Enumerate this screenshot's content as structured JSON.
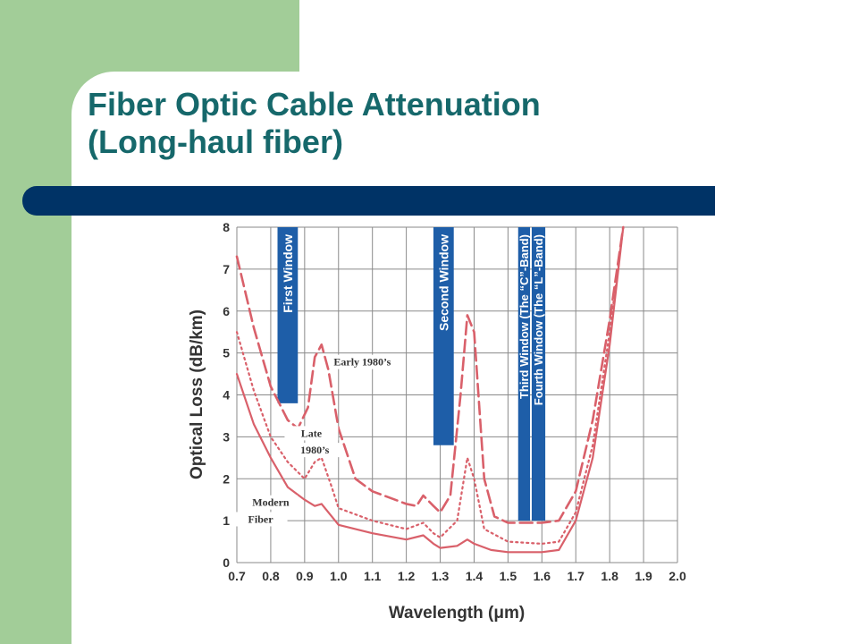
{
  "slide": {
    "title_line1": "Fiber Optic Cable Attenuation",
    "title_line2": "(Long-haul fiber)"
  },
  "colors": {
    "green_strip": "#a2cd98",
    "title_text": "#16686b",
    "navy_bar": "#003366",
    "window_band": "#1e5ea8",
    "curve": "#d9606a"
  },
  "chart_data": {
    "type": "line",
    "title": "",
    "xlabel": "Wavelength (μm)",
    "ylabel": "Optical Loss (dB/km)",
    "xlim": [
      0.7,
      2.0
    ],
    "ylim": [
      0,
      8
    ],
    "x_ticks": [
      "0.7",
      "0.8",
      "0.9",
      "1.0",
      "1.1",
      "1.2",
      "1.3",
      "1.4",
      "1.5",
      "1.6",
      "1.7",
      "1.8",
      "1.9",
      "2.0"
    ],
    "y_ticks": [
      "0",
      "1",
      "2",
      "3",
      "4",
      "5",
      "6",
      "7",
      "8"
    ],
    "grid": true,
    "bands": [
      {
        "label": "First Window",
        "x": [
          0.82,
          0.88
        ],
        "y": [
          3.8,
          8.0
        ]
      },
      {
        "label": "Second Window",
        "x": [
          1.28,
          1.34
        ],
        "y": [
          2.8,
          8.0
        ]
      },
      {
        "label": "Third Window (The “C”-Band)",
        "x": [
          1.53,
          1.565
        ],
        "y": [
          1.0,
          8.0
        ]
      },
      {
        "label": "Fourth Window (The “L”-Band)",
        "x": [
          1.57,
          1.61
        ],
        "y": [
          1.0,
          8.0
        ]
      }
    ],
    "series": [
      {
        "name": "Early 1980’s",
        "style": "dashed",
        "points": [
          [
            0.7,
            7.3
          ],
          [
            0.75,
            5.6
          ],
          [
            0.8,
            4.2
          ],
          [
            0.85,
            3.4
          ],
          [
            0.88,
            3.2
          ],
          [
            0.91,
            3.7
          ],
          [
            0.93,
            4.9
          ],
          [
            0.95,
            5.2
          ],
          [
            0.97,
            4.6
          ],
          [
            1.0,
            3.2
          ],
          [
            1.05,
            2.0
          ],
          [
            1.1,
            1.7
          ],
          [
            1.15,
            1.55
          ],
          [
            1.2,
            1.4
          ],
          [
            1.23,
            1.35
          ],
          [
            1.25,
            1.6
          ],
          [
            1.28,
            1.35
          ],
          [
            1.3,
            1.2
          ],
          [
            1.33,
            1.6
          ],
          [
            1.36,
            4.0
          ],
          [
            1.38,
            5.9
          ],
          [
            1.4,
            5.5
          ],
          [
            1.43,
            2.0
          ],
          [
            1.46,
            1.1
          ],
          [
            1.5,
            0.95
          ],
          [
            1.6,
            0.95
          ],
          [
            1.65,
            1.0
          ],
          [
            1.7,
            1.7
          ],
          [
            1.75,
            3.4
          ],
          [
            1.8,
            5.8
          ],
          [
            1.84,
            8.0
          ]
        ]
      },
      {
        "name": "Late 1980’s",
        "style": "dotted",
        "points": [
          [
            0.7,
            5.5
          ],
          [
            0.75,
            4.1
          ],
          [
            0.8,
            3.0
          ],
          [
            0.85,
            2.4
          ],
          [
            0.9,
            2.0
          ],
          [
            0.93,
            2.4
          ],
          [
            0.95,
            2.5
          ],
          [
            0.98,
            1.8
          ],
          [
            1.0,
            1.3
          ],
          [
            1.1,
            1.0
          ],
          [
            1.2,
            0.8
          ],
          [
            1.25,
            0.95
          ],
          [
            1.28,
            0.7
          ],
          [
            1.3,
            0.6
          ],
          [
            1.35,
            1.0
          ],
          [
            1.38,
            2.5
          ],
          [
            1.4,
            2.0
          ],
          [
            1.43,
            0.8
          ],
          [
            1.5,
            0.5
          ],
          [
            1.6,
            0.45
          ],
          [
            1.65,
            0.5
          ],
          [
            1.7,
            1.2
          ],
          [
            1.75,
            2.8
          ],
          [
            1.8,
            5.5
          ],
          [
            1.84,
            8.0
          ]
        ]
      },
      {
        "name": "Modern Fiber",
        "style": "solid",
        "points": [
          [
            0.7,
            4.5
          ],
          [
            0.75,
            3.3
          ],
          [
            0.8,
            2.5
          ],
          [
            0.85,
            1.8
          ],
          [
            0.9,
            1.5
          ],
          [
            0.93,
            1.35
          ],
          [
            0.95,
            1.4
          ],
          [
            0.98,
            1.1
          ],
          [
            1.0,
            0.9
          ],
          [
            1.1,
            0.7
          ],
          [
            1.2,
            0.55
          ],
          [
            1.25,
            0.65
          ],
          [
            1.28,
            0.45
          ],
          [
            1.3,
            0.35
          ],
          [
            1.35,
            0.4
          ],
          [
            1.38,
            0.55
          ],
          [
            1.4,
            0.45
          ],
          [
            1.45,
            0.3
          ],
          [
            1.5,
            0.25
          ],
          [
            1.6,
            0.25
          ],
          [
            1.65,
            0.3
          ],
          [
            1.7,
            1.0
          ],
          [
            1.75,
            2.5
          ],
          [
            1.8,
            5.2
          ],
          [
            1.84,
            8.0
          ]
        ]
      }
    ],
    "annotations": [
      {
        "text": "Early 1980’s",
        "x": 1.07,
        "y": 4.7
      },
      {
        "text": "Late",
        "x": 0.92,
        "y": 3.0
      },
      {
        "text": "1980’s",
        "x": 0.93,
        "y": 2.6
      },
      {
        "text": "Modern",
        "x": 0.8,
        "y": 1.35
      },
      {
        "text": "Fiber",
        "x": 0.77,
        "y": 0.95
      }
    ]
  }
}
